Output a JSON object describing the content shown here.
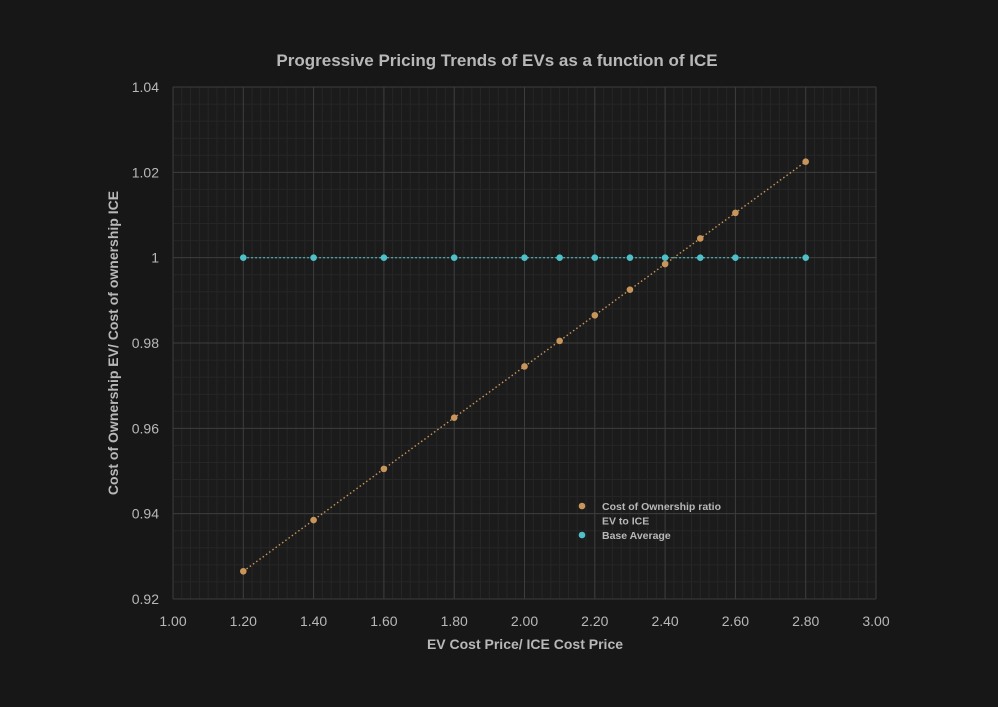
{
  "colors": {
    "background": "#171717",
    "plot_background": "#1b1b1b",
    "grid_major": "#3d3d3d",
    "grid_minor": "#262626",
    "text": "#b8b8b8",
    "ratio_series": "#c8955a",
    "base_series": "#4fc0c8"
  },
  "chart_data": {
    "type": "scatter",
    "title": "Progressive Pricing Trends of EVs as a function of ICE",
    "xlabel": "EV Cost Price/ ICE Cost Price",
    "ylabel": "Cost of Ownership EV/ Cost of ownership ICE",
    "xlim": [
      1.0,
      3.0
    ],
    "ylim": [
      0.92,
      1.04
    ],
    "x_ticks": [
      "1.00",
      "1.20",
      "1.40",
      "1.60",
      "1.80",
      "2.00",
      "2.20",
      "2.40",
      "2.60",
      "2.80",
      "3.00"
    ],
    "y_ticks": [
      "0.92",
      "0.94",
      "0.96",
      "0.98",
      "1",
      "1.02",
      "1.04"
    ],
    "grid": true,
    "legend_position": "lower-right inside plot",
    "series": [
      {
        "name_lines": [
          "Cost of Ownership ratio",
          "EV to ICE"
        ],
        "color": "#c8955a",
        "trendline": "dotted linear",
        "x": [
          1.2,
          1.4,
          1.6,
          1.8,
          2.0,
          2.1,
          2.2,
          2.3,
          2.4,
          2.5,
          2.6,
          2.8
        ],
        "y": [
          0.9265,
          0.9385,
          0.9505,
          0.9625,
          0.9745,
          0.9805,
          0.9865,
          0.9925,
          0.9985,
          1.0045,
          1.0105,
          1.0225
        ]
      },
      {
        "name_lines": [
          "Base Average"
        ],
        "color": "#4fc0c8",
        "trendline": "dotted linear",
        "x": [
          1.2,
          1.4,
          1.6,
          1.8,
          2.0,
          2.1,
          2.2,
          2.3,
          2.4,
          2.5,
          2.6,
          2.8
        ],
        "y": [
          1.0,
          1.0,
          1.0,
          1.0,
          1.0,
          1.0,
          1.0,
          1.0,
          1.0,
          1.0,
          1.0,
          1.0
        ]
      }
    ]
  }
}
